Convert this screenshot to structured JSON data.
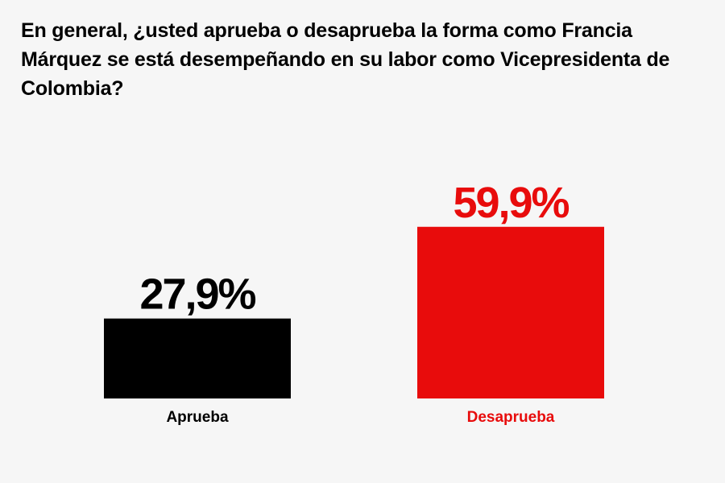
{
  "chart_data": {
    "type": "bar",
    "title": "En general, ¿usted aprueba o desaprueba la forma como Francia Márquez se está desempeñando en su labor como Vicepresidenta de Colombia?",
    "categories": [
      "Aprueba",
      "Desaprueba"
    ],
    "values": [
      27.9,
      59.9
    ],
    "value_labels": [
      "27,9%",
      "59,9%"
    ],
    "colors": [
      "#000000",
      "#e80c0c"
    ],
    "label_colors": [
      "#000000",
      "#e80c0c"
    ],
    "xlabel": "",
    "ylabel": "",
    "ylim": [
      0,
      100
    ],
    "grid": false,
    "legend": "none",
    "background": "#f6f6f6"
  }
}
